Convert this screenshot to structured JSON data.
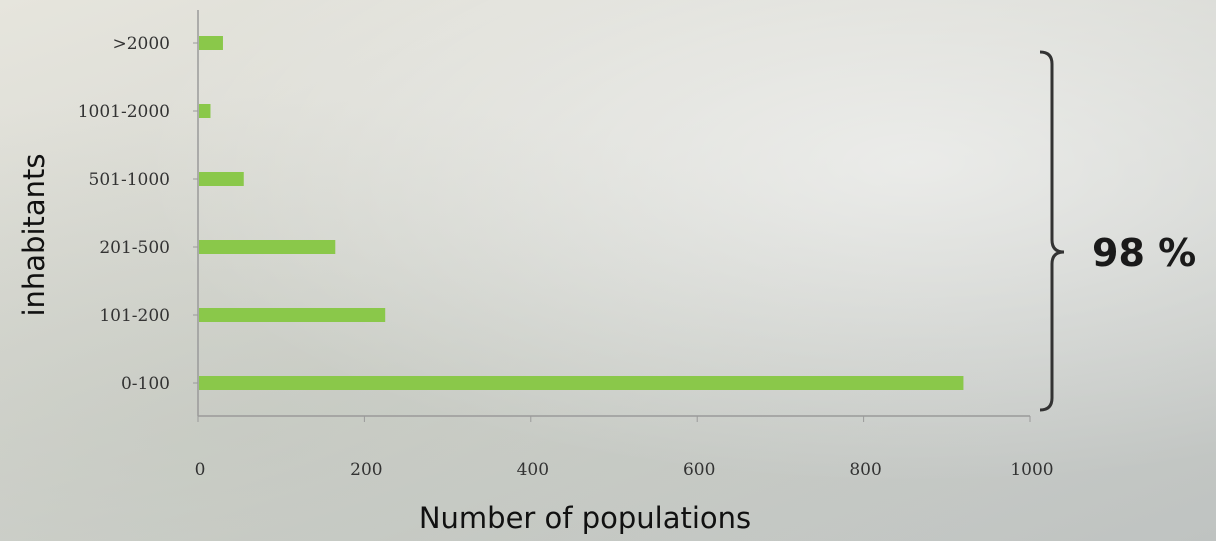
{
  "chart_data": {
    "type": "bar",
    "orientation": "horizontal",
    "categories": [
      "0-100",
      "101-200",
      "201-500",
      "501-1000",
      "1001-2000",
      ">2000"
    ],
    "values": [
      920,
      225,
      165,
      55,
      15,
      30
    ],
    "xlabel": "Number of populations",
    "ylabel": "inhabitants",
    "xticks": [
      "0",
      "200",
      "400",
      "600",
      "800",
      "1000"
    ],
    "xlim": [
      0,
      1000
    ],
    "grid": false,
    "bar_color": "#8ac84a",
    "annotation": {
      "text": "98 %",
      "bracket": "right curly brace spanning all categories"
    }
  }
}
